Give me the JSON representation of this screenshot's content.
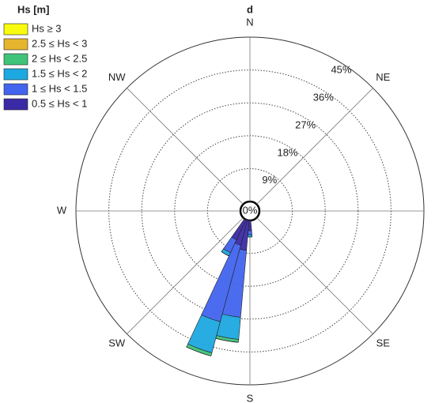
{
  "chart_data": {
    "type": "windrose",
    "title": "d",
    "legend_title": "Hs [m]",
    "x": [
      180,
      190,
      200,
      210
    ],
    "sector_width": 10,
    "xticks": [
      {
        "value": 0,
        "label": "N"
      },
      {
        "value": 45,
        "label": "NE"
      },
      {
        "value": 90,
        "label": "E"
      },
      {
        "value": 135,
        "label": "SE"
      },
      {
        "value": 180,
        "label": "S"
      },
      {
        "value": 225,
        "label": "SW"
      },
      {
        "value": 270,
        "label": "W"
      },
      {
        "value": 315,
        "label": "NW"
      }
    ],
    "ylim": [
      0,
      45
    ],
    "yticks": [
      {
        "value": 0,
        "label": "0%"
      },
      {
        "value": 9,
        "label": "9%"
      },
      {
        "value": 18,
        "label": "18%"
      },
      {
        "value": 27,
        "label": "27%"
      },
      {
        "value": 36,
        "label": "36%"
      },
      {
        "value": 45,
        "label": "45%"
      }
    ],
    "grid": true,
    "legend": "top-left",
    "series": [
      {
        "name": "Hs ≥ 3",
        "color": "#f9fb0e",
        "values": [
          0,
          0,
          0,
          0
        ]
      },
      {
        "name": "2.5 ≤ Hs < 3",
        "color": "#e6b52e",
        "values": [
          0,
          0,
          0,
          0
        ]
      },
      {
        "name": "2 ≤ Hs < 2.5",
        "color": "#3fc47a",
        "values": [
          0,
          0.8,
          0.9,
          0
        ]
      },
      {
        "name": "1.5 ≤ Hs < 2",
        "color": "#1ca8e0",
        "values": [
          0.6,
          6.1,
          8.8,
          1.0
        ]
      },
      {
        "name": "1 ≤ Hs < 1.5",
        "color": "#4264ee",
        "values": [
          1.1,
          18.4,
          21.7,
          3.9
        ]
      },
      {
        "name": "0.5 ≤ Hs < 1",
        "color": "#3b2aa6",
        "values": [
          2.8,
          8.2,
          7.1,
          6.1
        ]
      }
    ]
  }
}
